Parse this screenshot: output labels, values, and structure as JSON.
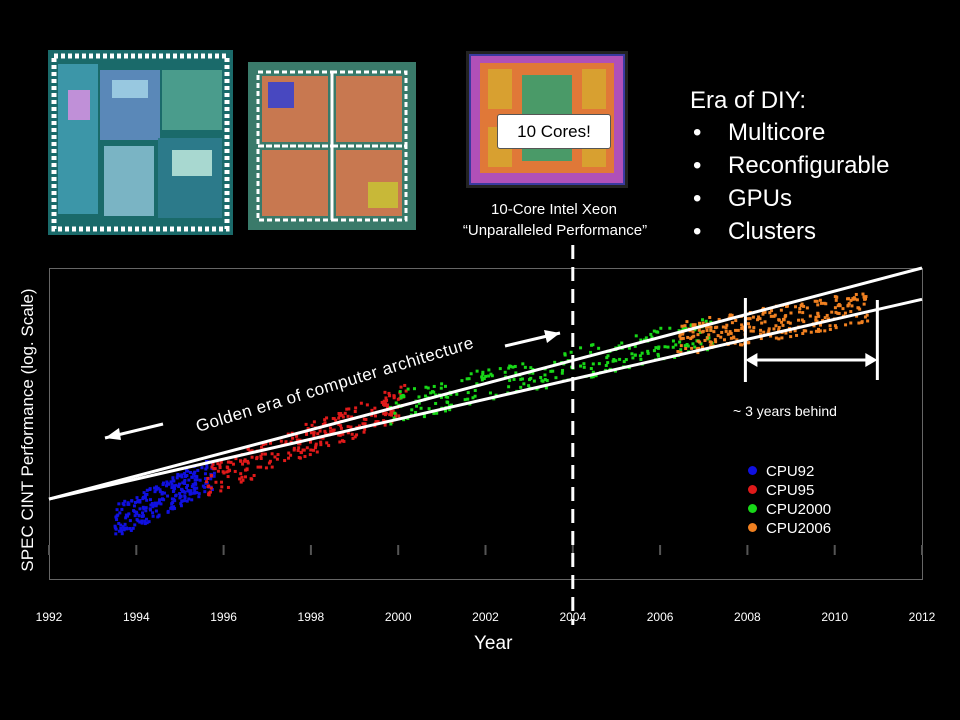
{
  "header": {
    "caption_line1": "10-Core Intel Xeon",
    "caption_line2": "“Unparalleled Performance”",
    "cores_label": "10 Cores!"
  },
  "diy": {
    "title": "Era of DIY:",
    "items": [
      "Multicore",
      "Reconfigurable",
      "GPUs",
      "Clusters"
    ]
  },
  "annotations": {
    "golden_era": "Golden era of computer architecture",
    "years_behind": "~ 3 years behind"
  },
  "colors": {
    "CPU92": "#1010e0",
    "CPU95": "#e01a1a",
    "CPU2000": "#18d818",
    "CPU2006": "#f08020"
  },
  "chart_data": {
    "type": "scatter",
    "xlabel": "Year",
    "ylabel": "SPEC CINT Performance (log. Scale)",
    "yscale": "log",
    "xlim": [
      1992,
      2012
    ],
    "x_ticks": [
      "1992",
      "1994",
      "1996",
      "1998",
      "2000",
      "2002",
      "2004",
      "2006",
      "2008",
      "2010",
      "2012"
    ],
    "ylim": [
      1,
      1000
    ],
    "grid": false,
    "legend_position": "bottom-right",
    "legend": [
      "CPU92",
      "CPU95",
      "CPU2000",
      "CPU2006"
    ],
    "series": [
      {
        "name": "CPU92",
        "x_range": [
          1993.5,
          1995.8
        ],
        "y_start": 4,
        "y_end": 12
      },
      {
        "name": "CPU95",
        "x_range": [
          1995.6,
          2000.2
        ],
        "y_start": 10,
        "y_end": 60
      },
      {
        "name": "CPU2000",
        "x_range": [
          1999.8,
          2007.2
        ],
        "y_start": 50,
        "y_end": 270
      },
      {
        "name": "CPU2006",
        "x_range": [
          2006.4,
          2010.8
        ],
        "y_start": 230,
        "y_end": 470
      }
    ],
    "trend_lines": [
      {
        "from": [
          1992,
          6
        ],
        "to": [
          2012,
          1000
        ]
      },
      {
        "from": [
          1992,
          6
        ],
        "to": [
          2012,
          500
        ]
      }
    ],
    "vertical_marker": 2004,
    "behind_interval": [
      2008,
      2011
    ]
  }
}
